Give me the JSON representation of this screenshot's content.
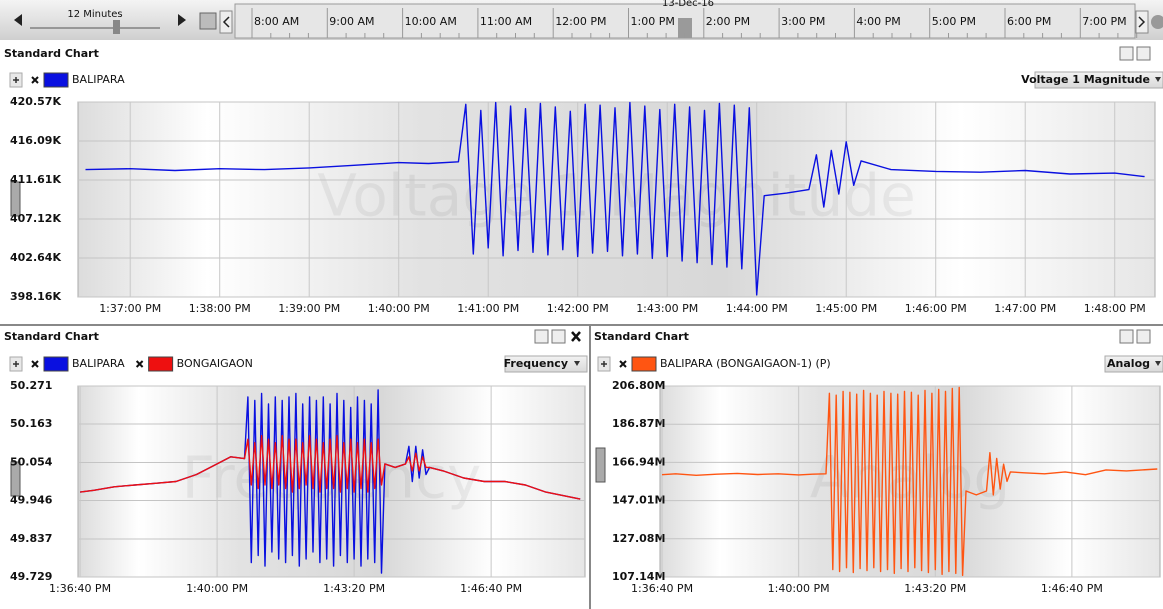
{
  "toolbar": {
    "zoom_label": "12 Minutes",
    "date_label": "13-Dec-16",
    "times": [
      "8:00 AM",
      "9:00 AM",
      "10:00 AM",
      "11:00 AM",
      "12:00 PM",
      "1:00 PM",
      "2:00 PM",
      "3:00 PM",
      "4:00 PM",
      "5:00 PM",
      "6:00 PM",
      "7:00 PM"
    ]
  },
  "chart_data": [
    {
      "type": "line",
      "panel_title": "Standard Chart",
      "measure": "Voltage 1 Magnitude",
      "x": [
        "1:36:30 PM",
        "1:37:00 PM",
        "1:37:30 PM",
        "1:38:00 PM",
        "1:38:30 PM",
        "1:39:00 PM",
        "1:39:30 PM",
        "1:40:00 PM",
        "1:40:20 PM",
        "1:40:40 PM",
        "1:40:45 PM",
        "1:40:50 PM",
        "1:40:55 PM",
        "1:41:00 PM",
        "1:41:05 PM",
        "1:41:10 PM",
        "1:41:15 PM",
        "1:41:20 PM",
        "1:41:25 PM",
        "1:41:30 PM",
        "1:41:35 PM",
        "1:41:40 PM",
        "1:41:45 PM",
        "1:41:50 PM",
        "1:41:55 PM",
        "1:42:00 PM",
        "1:42:05 PM",
        "1:42:10 PM",
        "1:42:15 PM",
        "1:42:20 PM",
        "1:42:25 PM",
        "1:42:30 PM",
        "1:42:35 PM",
        "1:42:40 PM",
        "1:42:45 PM",
        "1:42:50 PM",
        "1:42:55 PM",
        "1:43:00 PM",
        "1:43:05 PM",
        "1:43:10 PM",
        "1:43:15 PM",
        "1:43:20 PM",
        "1:43:25 PM",
        "1:43:30 PM",
        "1:43:35 PM",
        "1:43:40 PM",
        "1:43:45 PM",
        "1:43:50 PM",
        "1:43:55 PM",
        "1:44:00 PM",
        "1:44:05 PM",
        "1:44:20 PM",
        "1:44:35 PM",
        "1:44:40 PM",
        "1:44:45 PM",
        "1:44:50 PM",
        "1:44:55 PM",
        "1:45:00 PM",
        "1:45:05 PM",
        "1:45:10 PM",
        "1:45:30 PM",
        "1:46:00 PM",
        "1:46:30 PM",
        "1:47:00 PM",
        "1:47:30 PM",
        "1:48:00 PM",
        "1:48:20 PM"
      ],
      "series": [
        {
          "name": "BALIPARA",
          "color": "#0a10e0",
          "values": [
            412800,
            412900,
            412700,
            412900,
            412800,
            413000,
            413300,
            413600,
            413500,
            413700,
            420300,
            403100,
            419600,
            403800,
            420500,
            402900,
            420100,
            403500,
            419800,
            403300,
            420400,
            403000,
            420000,
            403600,
            419500,
            402800,
            420300,
            403200,
            420200,
            403400,
            419900,
            402900,
            420500,
            403100,
            420100,
            402600,
            419700,
            402800,
            420300,
            402300,
            420000,
            402100,
            419600,
            401900,
            420400,
            401600,
            420200,
            401400,
            419900,
            398400,
            409800,
            410100,
            410500,
            414500,
            408500,
            415000,
            410000,
            416000,
            411000,
            413800,
            412800,
            412600,
            412500,
            412700,
            412300,
            412400,
            412000
          ]
        }
      ],
      "xlim": [
        "1:36:25 PM",
        "1:48:27 PM"
      ],
      "xticks": [
        "1:37:00 PM",
        "1:38:00 PM",
        "1:39:00 PM",
        "1:40:00 PM",
        "1:41:00 PM",
        "1:42:00 PM",
        "1:43:00 PM",
        "1:44:00 PM",
        "1:45:00 PM",
        "1:46:00 PM",
        "1:47:00 PM",
        "1:48:00 PM"
      ],
      "ylim": [
        398160,
        420570
      ],
      "yticks": [
        {
          "value": 398160,
          "label": "398.16K"
        },
        {
          "value": 402640,
          "label": "402.64K"
        },
        {
          "value": 407120,
          "label": "407.12K"
        },
        {
          "value": 411610,
          "label": "411.61K"
        },
        {
          "value": 416090,
          "label": "416.09K"
        },
        {
          "value": 420570,
          "label": "420.57K"
        }
      ],
      "grid": true
    },
    {
      "type": "line",
      "panel_title": "Standard Chart",
      "measure": "Frequency",
      "x": [
        "1:36:40 PM",
        "1:37:00 PM",
        "1:37:30 PM",
        "1:38:00 PM",
        "1:38:30 PM",
        "1:39:00 PM",
        "1:39:30 PM",
        "1:40:00 PM",
        "1:40:20 PM",
        "1:40:40 PM",
        "1:40:45 PM",
        "1:40:50 PM",
        "1:40:55 PM",
        "1:41:00 PM",
        "1:41:05 PM",
        "1:41:10 PM",
        "1:41:15 PM",
        "1:41:20 PM",
        "1:41:25 PM",
        "1:41:30 PM",
        "1:41:35 PM",
        "1:41:40 PM",
        "1:41:45 PM",
        "1:41:50 PM",
        "1:41:55 PM",
        "1:42:00 PM",
        "1:42:05 PM",
        "1:42:10 PM",
        "1:42:15 PM",
        "1:42:20 PM",
        "1:42:25 PM",
        "1:42:30 PM",
        "1:42:35 PM",
        "1:42:40 PM",
        "1:42:45 PM",
        "1:42:50 PM",
        "1:42:55 PM",
        "1:43:00 PM",
        "1:43:05 PM",
        "1:43:10 PM",
        "1:43:15 PM",
        "1:43:20 PM",
        "1:43:25 PM",
        "1:43:30 PM",
        "1:43:35 PM",
        "1:43:40 PM",
        "1:43:45 PM",
        "1:43:50 PM",
        "1:43:55 PM",
        "1:44:00 PM",
        "1:44:05 PM",
        "1:44:20 PM",
        "1:44:35 PM",
        "1:44:40 PM",
        "1:44:45 PM",
        "1:44:50 PM",
        "1:44:55 PM",
        "1:45:00 PM",
        "1:45:05 PM",
        "1:45:10 PM",
        "1:45:30 PM",
        "1:46:00 PM",
        "1:46:30 PM",
        "1:47:00 PM",
        "1:47:30 PM",
        "1:48:00 PM",
        "1:48:50 PM"
      ],
      "series": [
        {
          "name": "BALIPARA",
          "color": "#0a10e0",
          "values": [
            49.97,
            49.975,
            49.985,
            49.99,
            49.995,
            50.0,
            50.02,
            50.05,
            50.07,
            50.065,
            50.24,
            49.77,
            50.23,
            49.79,
            50.25,
            49.76,
            50.22,
            49.8,
            50.24,
            49.78,
            50.23,
            49.77,
            50.24,
            49.79,
            50.25,
            49.76,
            50.22,
            49.78,
            50.24,
            49.8,
            50.23,
            49.77,
            50.24,
            49.78,
            50.22,
            49.76,
            50.25,
            49.79,
            50.23,
            49.77,
            50.21,
            49.78,
            50.24,
            49.76,
            50.23,
            49.78,
            50.22,
            49.77,
            50.26,
            49.74,
            50.05,
            50.04,
            50.05,
            50.1,
            50.0,
            50.1,
            50.01,
            50.09,
            50.02,
            50.04,
            50.03,
            50.01,
            50.0,
            50.0,
            49.99,
            49.97,
            49.95
          ]
        },
        {
          "name": "BONGAIGAON",
          "color": "#ee1010",
          "values": [
            49.97,
            49.975,
            49.985,
            49.99,
            49.995,
            50.0,
            50.02,
            50.05,
            50.07,
            50.065,
            50.12,
            49.99,
            50.11,
            49.98,
            50.13,
            49.99,
            50.12,
            49.98,
            50.11,
            49.99,
            50.13,
            49.98,
            50.12,
            49.97,
            50.12,
            49.98,
            50.11,
            49.99,
            50.13,
            49.98,
            50.12,
            49.97,
            50.11,
            49.98,
            50.12,
            49.98,
            50.13,
            49.97,
            50.11,
            49.98,
            50.12,
            49.97,
            50.11,
            49.98,
            50.12,
            49.97,
            50.11,
            49.98,
            50.12,
            49.99,
            50.05,
            50.04,
            50.05,
            50.07,
            50.03,
            50.08,
            50.03,
            50.07,
            50.04,
            50.04,
            50.03,
            50.01,
            50.0,
            50.0,
            49.99,
            49.97,
            49.95
          ]
        }
      ],
      "xlim": [
        "1:36:37 PM",
        "1:48:57 PM"
      ],
      "xticks": [
        "1:36:40 PM",
        "1:40:00 PM",
        "1:43:20 PM",
        "1:46:40 PM"
      ],
      "ylim": [
        49.729,
        50.271
      ],
      "yticks": [
        49.729,
        49.837,
        49.946,
        50.054,
        50.163,
        50.271
      ],
      "grid": true
    },
    {
      "type": "line",
      "panel_title": "Standard Chart",
      "measure": "Analog",
      "x": [
        "1:36:40 PM",
        "1:37:00 PM",
        "1:37:30 PM",
        "1:38:00 PM",
        "1:38:30 PM",
        "1:39:00 PM",
        "1:39:30 PM",
        "1:40:00 PM",
        "1:40:20 PM",
        "1:40:40 PM",
        "1:40:45 PM",
        "1:40:50 PM",
        "1:40:55 PM",
        "1:41:00 PM",
        "1:41:05 PM",
        "1:41:10 PM",
        "1:41:15 PM",
        "1:41:20 PM",
        "1:41:25 PM",
        "1:41:30 PM",
        "1:41:35 PM",
        "1:41:40 PM",
        "1:41:45 PM",
        "1:41:50 PM",
        "1:41:55 PM",
        "1:42:00 PM",
        "1:42:05 PM",
        "1:42:10 PM",
        "1:42:15 PM",
        "1:42:20 PM",
        "1:42:25 PM",
        "1:42:30 PM",
        "1:42:35 PM",
        "1:42:40 PM",
        "1:42:45 PM",
        "1:42:50 PM",
        "1:42:55 PM",
        "1:43:00 PM",
        "1:43:05 PM",
        "1:43:10 PM",
        "1:43:15 PM",
        "1:43:20 PM",
        "1:43:25 PM",
        "1:43:30 PM",
        "1:43:35 PM",
        "1:43:40 PM",
        "1:43:45 PM",
        "1:43:50 PM",
        "1:43:55 PM",
        "1:44:00 PM",
        "1:44:05 PM",
        "1:44:20 PM",
        "1:44:35 PM",
        "1:44:40 PM",
        "1:44:45 PM",
        "1:44:50 PM",
        "1:44:55 PM",
        "1:45:00 PM",
        "1:45:05 PM",
        "1:45:10 PM",
        "1:45:30 PM",
        "1:46:00 PM",
        "1:46:30 PM",
        "1:47:00 PM",
        "1:47:30 PM",
        "1:48:00 PM",
        "1:48:45 PM"
      ],
      "series": [
        {
          "name": "BALIPARA (BONGAIGAON-1) (P)",
          "color": "#ff5512",
          "values": [
            160500000,
            161000000,
            160200000,
            160800000,
            161200000,
            160600000,
            161000000,
            160400000,
            160800000,
            161000000,
            203000000,
            111000000,
            202000000,
            110000000,
            204000000,
            112000000,
            203500000,
            109500000,
            202500000,
            111500000,
            204500000,
            110500000,
            203000000,
            112000000,
            202000000,
            110000000,
            204000000,
            111000000,
            203000000,
            109000000,
            202500000,
            111500000,
            204000000,
            110000000,
            203500000,
            112000000,
            202000000,
            110500000,
            204500000,
            109500000,
            203000000,
            111000000,
            205000000,
            108500000,
            204000000,
            110000000,
            205500000,
            109000000,
            206000000,
            108000000,
            152000000,
            150000000,
            152000000,
            172000000,
            150000000,
            169000000,
            153000000,
            166000000,
            157000000,
            162000000,
            161500000,
            161000000,
            162000000,
            160500000,
            163000000,
            162500000,
            163500000
          ]
        }
      ],
      "xlim": [
        "1:36:37 PM",
        "1:48:49 PM"
      ],
      "xticks": [
        "1:36:40 PM",
        "1:40:00 PM",
        "1:43:20 PM",
        "1:46:40 PM"
      ],
      "ylim": [
        107140000,
        206800000
      ],
      "yticks": [
        {
          "value": 107140000,
          "label": "107.14M"
        },
        {
          "value": 127080000,
          "label": "127.08M"
        },
        {
          "value": 147010000,
          "label": "147.01M"
        },
        {
          "value": 166940000,
          "label": "166.94M"
        },
        {
          "value": 186870000,
          "label": "186.87M"
        },
        {
          "value": 206800000,
          "label": "206.80M"
        }
      ],
      "grid": true
    }
  ]
}
